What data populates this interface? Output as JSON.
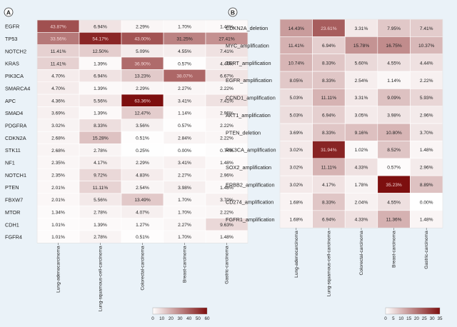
{
  "figure": {
    "background": "#eaf2f8"
  },
  "chart_data": [
    {
      "type": "heatmap",
      "panel_label": "A",
      "columns": [
        "Lung-adenocarcinoma",
        "Lung-squamous-cell-carcinoma",
        "Colorectal-carcinoma",
        "Breast-carcinoma",
        "Gastric-carcinoma"
      ],
      "rows": [
        {
          "label": "EGFR",
          "values": [
            "43.87%",
            "6.94%",
            "2.29%",
            "1.70%",
            "1.48%"
          ]
        },
        {
          "label": "TP53",
          "values": [
            "33.56%",
            "54.17%",
            "43.00%",
            "31.25%",
            "27.41%"
          ]
        },
        {
          "label": "NOTCH2",
          "values": [
            "11.41%",
            "12.50%",
            "5.09%",
            "4.55%",
            "7.41%"
          ]
        },
        {
          "label": "KRAS",
          "values": [
            "11.41%",
            "1.39%",
            "36.90%",
            "0.57%",
            "4.44%"
          ]
        },
        {
          "label": "PIK3CA",
          "values": [
            "4.70%",
            "6.94%",
            "13.23%",
            "38.07%",
            "6.67%"
          ]
        },
        {
          "label": "SMARCA4",
          "values": [
            "4.70%",
            "1.39%",
            "2.29%",
            "2.27%",
            "2.22%"
          ]
        },
        {
          "label": "APC",
          "values": [
            "4.36%",
            "5.56%",
            "63.36%",
            "3.41%",
            "7.41%"
          ]
        },
        {
          "label": "SMAD4",
          "values": [
            "3.69%",
            "1.39%",
            "12.47%",
            "1.14%",
            "2.96%"
          ]
        },
        {
          "label": "PDGFRA",
          "values": [
            "3.02%",
            "8.33%",
            "3.56%",
            "0.57%",
            "2.22%"
          ]
        },
        {
          "label": "CDKN2A",
          "values": [
            "2.68%",
            "15.28%",
            "0.51%",
            "2.84%",
            "2.22%"
          ]
        },
        {
          "label": "STK11",
          "values": [
            "2.68%",
            "2.78%",
            "0.25%",
            "0.00%",
            "0.74%"
          ]
        },
        {
          "label": "NF1",
          "values": [
            "2.35%",
            "4.17%",
            "2.29%",
            "3.41%",
            "1.48%"
          ]
        },
        {
          "label": "NOTCH1",
          "values": [
            "2.35%",
            "9.72%",
            "4.83%",
            "2.27%",
            "2.96%"
          ]
        },
        {
          "label": "PTEN",
          "values": [
            "2.01%",
            "11.11%",
            "2.54%",
            "3.98%",
            "1.48%"
          ]
        },
        {
          "label": "FBXW7",
          "values": [
            "2.01%",
            "5.56%",
            "13.49%",
            "1.70%",
            "3.70%"
          ]
        },
        {
          "label": "MTOR",
          "values": [
            "1.34%",
            "2.78%",
            "4.07%",
            "1.70%",
            "2.22%"
          ]
        },
        {
          "label": "CDH1",
          "values": [
            "1.01%",
            "1.39%",
            "1.27%",
            "2.27%",
            "9.63%"
          ]
        },
        {
          "label": "FGFR4",
          "values": [
            "1.01%",
            "2.78%",
            "0.51%",
            "1.70%",
            "1.48%"
          ]
        }
      ],
      "color_scale": {
        "min": 0,
        "max": 60,
        "ticks": [
          "0",
          "10",
          "20",
          "30",
          "40",
          "50",
          "60"
        ],
        "low": "#ffffff",
        "high": "#7d0f0f"
      }
    },
    {
      "type": "heatmap",
      "panel_label": "B",
      "columns": [
        "Lung-adenocarcinoma",
        "Lung-squamous-cell-carcinoma",
        "Colorectal-carcinoma",
        "Breast-carcinoma",
        "Gastric-carcinoma"
      ],
      "rows": [
        {
          "label": "CDKN2A_deletion",
          "values": [
            "14.43%",
            "23.61%",
            "3.31%",
            "7.95%",
            "7.41%"
          ]
        },
        {
          "label": "MYC_amplification",
          "values": [
            "11.41%",
            "6.94%",
            "15.78%",
            "16.75%",
            "10.37%"
          ]
        },
        {
          "label": "TERT_amplification",
          "values": [
            "10.74%",
            "8.33%",
            "5.60%",
            "4.55%",
            "4.44%"
          ]
        },
        {
          "label": "EGFR_amplification",
          "values": [
            "8.05%",
            "8.33%",
            "2.54%",
            "1.14%",
            "2.22%"
          ]
        },
        {
          "label": "CCND1_amplification",
          "values": [
            "5.03%",
            "11.11%",
            "3.31%",
            "9.09%",
            "5.93%"
          ]
        },
        {
          "label": "AKT1_amplification",
          "values": [
            "5.03%",
            "6.94%",
            "3.05%",
            "3.98%",
            "2.96%"
          ]
        },
        {
          "label": "PTEN_deletion",
          "values": [
            "3.69%",
            "8.33%",
            "9.16%",
            "10.80%",
            "3.70%"
          ]
        },
        {
          "label": "PIK3CA_amplification",
          "values": [
            "3.02%",
            "31.94%",
            "1.02%",
            "8.52%",
            "1.48%"
          ]
        },
        {
          "label": "SOX2_amplification",
          "values": [
            "3.02%",
            "11.11%",
            "4.33%",
            "0.57%",
            "2.96%"
          ]
        },
        {
          "label": "ERBB2_amplification",
          "values": [
            "3.02%",
            "4.17%",
            "1.78%",
            "35.23%",
            "8.89%"
          ]
        },
        {
          "label": "CD274_amplification",
          "values": [
            "1.68%",
            "8.33%",
            "2.04%",
            "4.55%",
            "0.00%"
          ]
        },
        {
          "label": "FGFR1_amplification",
          "values": [
            "1.68%",
            "6.94%",
            "4.33%",
            "11.36%",
            "1.48%"
          ]
        }
      ],
      "color_scale": {
        "min": 0,
        "max": 35,
        "ticks": [
          "0",
          "5",
          "10",
          "15",
          "20",
          "25",
          "30",
          "35"
        ],
        "low": "#ffffff",
        "high": "#7d0f0f"
      }
    }
  ]
}
